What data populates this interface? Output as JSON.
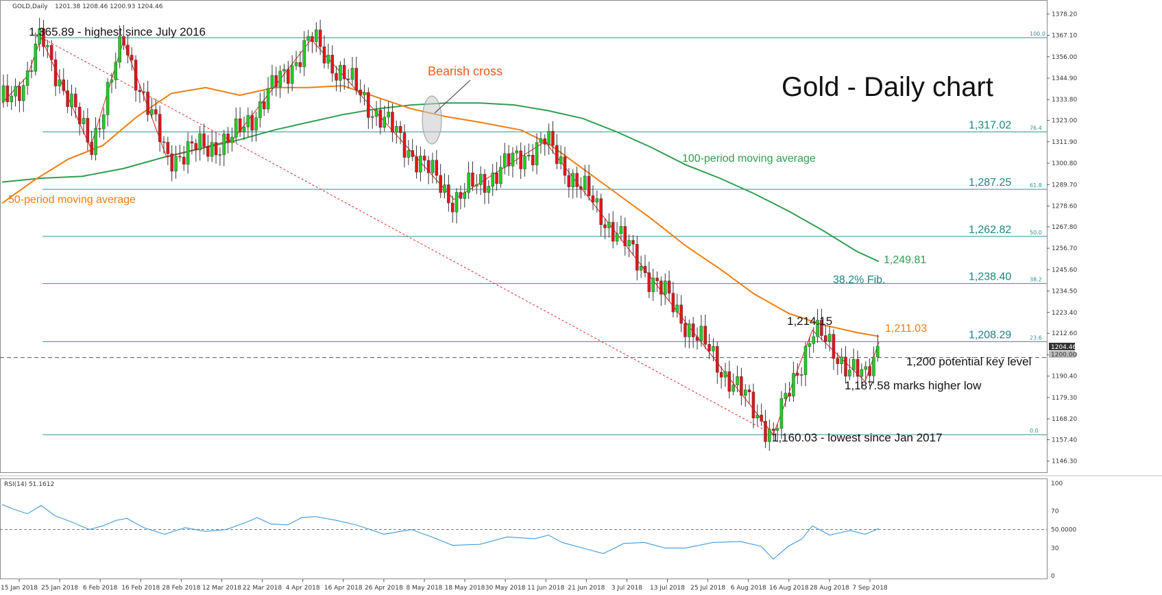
{
  "header": {
    "symbol": "GOLD,Daily",
    "ohlc": "1201.38 1208.46 1200.93 1204.46",
    "rsi_label": "RSI(14) 51.1612"
  },
  "chart_data": {
    "type": "candlestick",
    "title": "Gold - Daily chart",
    "ylim": [
      1143,
      1384
    ],
    "y_ticks": [
      "1378.20",
      "1367.10",
      "1356.00",
      "1344.90",
      "1333.80",
      "1323.00",
      "1311.90",
      "1300.80",
      "1289.70",
      "1278.60",
      "1267.80",
      "1256.70",
      "1245.60",
      "1234.50",
      "1223.40",
      "1212.60",
      "1201.50",
      "1190.40",
      "1179.30",
      "1168.20",
      "1157.40",
      "1146.30"
    ],
    "x_ticks": [
      "15 Jan 2018",
      "25 Jan 2018",
      "6 Feb 2018",
      "16 Feb 2018",
      "28 Feb 2018",
      "12 Mar 2018",
      "22 Mar 2018",
      "4 Apr 2018",
      "16 Apr 2018",
      "26 Apr 2018",
      "8 May 2018",
      "18 May 2018",
      "30 May 2018",
      "11 Jun 2018",
      "21 Jun 2018",
      "3 Jul 2018",
      "13 Jul 2018",
      "25 Jul 2018",
      "6 Aug 2018",
      "16 Aug 2018",
      "28 Aug 2018",
      "7 Sep 2018"
    ],
    "current_price": "1204.46",
    "key_level_price": "1200.00",
    "fib_levels": [
      {
        "ratio": "100.0",
        "value": 1365.89,
        "label": ""
      },
      {
        "ratio": "76.4",
        "value": 1317.02,
        "label": "1,317.02"
      },
      {
        "ratio": "61.8",
        "value": 1287.25,
        "label": "1,287.25"
      },
      {
        "ratio": "50.0",
        "value": 1262.82,
        "label": "1,262.82"
      },
      {
        "ratio": "38.2",
        "value": 1238.4,
        "label": "1,238.40"
      },
      {
        "ratio": "23.6",
        "value": 1208.29,
        "label": "1,208.29"
      },
      {
        "ratio": "0.0",
        "value": 1160.03,
        "label": ""
      }
    ],
    "ma_labels": {
      "ma50": "50-period moving average",
      "ma100": "100-period moving average",
      "ma50_value": "1,211.03",
      "ma100_value": "1,249.81"
    },
    "annotations": {
      "high": "1,365.89 - highest since July 2016",
      "bearish_cross": "Bearish cross",
      "fib382": "38.2% Fib.",
      "swing_high": "1,214.15",
      "key_level": "1,200 potential key level",
      "higher_low": "1,187.58 marks higher low",
      "low": "1,160.03 - lowest since Jan 2017"
    },
    "zigzag": [
      [
        3,
        1332
      ],
      [
        40,
        1346
      ],
      [
        60,
        1365.9
      ],
      [
        132,
        1309
      ],
      [
        180,
        1364
      ],
      [
        243,
        1304
      ],
      [
        340,
        1313
      ],
      [
        454,
        1365
      ],
      [
        662,
        1282
      ],
      [
        795,
        1312
      ],
      [
        1128,
        1160
      ],
      [
        1185,
        1214.2
      ],
      [
        1262,
        1187.6
      ],
      [
        1282,
        1208
      ]
    ],
    "ma50": [
      [
        3,
        1280
      ],
      [
        50,
        1292
      ],
      [
        100,
        1303
      ],
      [
        150,
        1310
      ],
      [
        200,
        1325
      ],
      [
        250,
        1337
      ],
      [
        300,
        1340
      ],
      [
        350,
        1336
      ],
      [
        400,
        1340
      ],
      [
        450,
        1340
      ],
      [
        500,
        1341
      ],
      [
        550,
        1335
      ],
      [
        600,
        1329
      ],
      [
        650,
        1325
      ],
      [
        700,
        1322
      ],
      [
        760,
        1318
      ],
      [
        800,
        1311
      ],
      [
        850,
        1298
      ],
      [
        900,
        1285
      ],
      [
        950,
        1272
      ],
      [
        1000,
        1258
      ],
      [
        1050,
        1246
      ],
      [
        1100,
        1233
      ],
      [
        1150,
        1223
      ],
      [
        1200,
        1217
      ],
      [
        1250,
        1213
      ],
      [
        1282,
        1211
      ]
    ],
    "ma100": [
      [
        3,
        1291
      ],
      [
        60,
        1293
      ],
      [
        120,
        1294
      ],
      [
        180,
        1298
      ],
      [
        240,
        1304
      ],
      [
        300,
        1309
      ],
      [
        350,
        1313
      ],
      [
        400,
        1318
      ],
      [
        450,
        1322
      ],
      [
        500,
        1326
      ],
      [
        550,
        1329
      ],
      [
        600,
        1331
      ],
      [
        650,
        1332
      ],
      [
        700,
        1332
      ],
      [
        750,
        1331
      ],
      [
        800,
        1328
      ],
      [
        850,
        1324
      ],
      [
        900,
        1317
      ],
      [
        950,
        1309
      ],
      [
        1000,
        1300
      ],
      [
        1050,
        1293
      ],
      [
        1100,
        1285
      ],
      [
        1150,
        1276
      ],
      [
        1200,
        1266
      ],
      [
        1250,
        1255
      ],
      [
        1282,
        1249.8
      ]
    ],
    "rsi": {
      "label": "RSI(14)",
      "value": "51.1612",
      "ylim": [
        0,
        100
      ],
      "y_ticks": [
        "100",
        "70",
        "50.0000",
        "30",
        "0"
      ],
      "points": [
        [
          3,
          77
        ],
        [
          20,
          72
        ],
        [
          40,
          67
        ],
        [
          60,
          76
        ],
        [
          80,
          65
        ],
        [
          105,
          58
        ],
        [
          130,
          50
        ],
        [
          150,
          54
        ],
        [
          170,
          60
        ],
        [
          185,
          62
        ],
        [
          210,
          52
        ],
        [
          240,
          45
        ],
        [
          270,
          52
        ],
        [
          300,
          48
        ],
        [
          330,
          50
        ],
        [
          360,
          58
        ],
        [
          375,
          63
        ],
        [
          395,
          56
        ],
        [
          420,
          55
        ],
        [
          440,
          63
        ],
        [
          460,
          64
        ],
        [
          490,
          60
        ],
        [
          520,
          55
        ],
        [
          560,
          45
        ],
        [
          600,
          50
        ],
        [
          630,
          42
        ],
        [
          660,
          33
        ],
        [
          700,
          34
        ],
        [
          740,
          42
        ],
        [
          780,
          40
        ],
        [
          800,
          44
        ],
        [
          820,
          36
        ],
        [
          860,
          28
        ],
        [
          880,
          24
        ],
        [
          910,
          35
        ],
        [
          940,
          36
        ],
        [
          970,
          30
        ],
        [
          1000,
          30
        ],
        [
          1040,
          36
        ],
        [
          1080,
          37
        ],
        [
          1110,
          32
        ],
        [
          1128,
          18
        ],
        [
          1150,
          32
        ],
        [
          1170,
          40
        ],
        [
          1185,
          54
        ],
        [
          1210,
          44
        ],
        [
          1240,
          49
        ],
        [
          1262,
          45
        ],
        [
          1282,
          51
        ]
      ]
    },
    "grid": false
  }
}
